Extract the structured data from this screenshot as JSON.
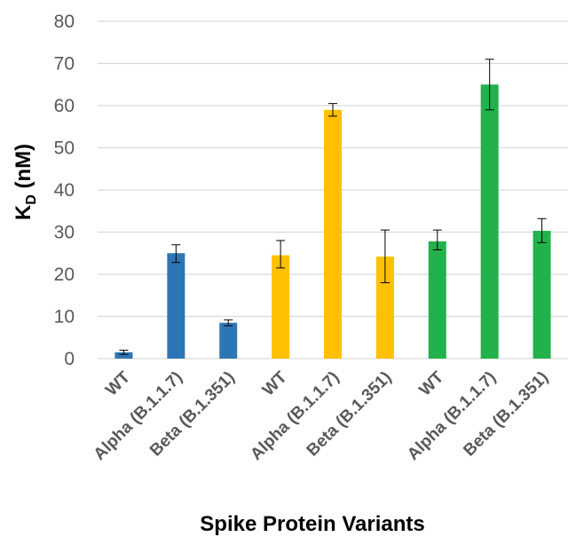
{
  "chart_data": {
    "type": "bar",
    "title": "",
    "xlabel": "Spike Protein Variants",
    "ylabel": {
      "main": "K",
      "subscript": "D",
      "unit": " (nM)"
    },
    "ylim": [
      0,
      80
    ],
    "yticks": [
      0,
      10,
      20,
      30,
      40,
      50,
      60,
      70,
      80
    ],
    "grid": true,
    "legend": "none",
    "categories": [
      "WT",
      "Alpha (B.1.1.7)",
      "Beta (B.1.351)",
      "WT",
      "Alpha (B.1.1.7)",
      "Beta (B.1.351)",
      "WT",
      "Alpha (B.1.1.7)",
      "Beta (B.1.351)"
    ],
    "values": [
      1.5,
      25,
      8.5,
      24.5,
      59,
      24.2,
      27.8,
      65,
      30.3
    ],
    "error_low": [
      1.0,
      22.8,
      7.8,
      21.5,
      57.5,
      18.0,
      25.8,
      59.0,
      27.5
    ],
    "error_high": [
      2.0,
      27.0,
      9.2,
      28.0,
      60.5,
      30.5,
      30.5,
      71.0,
      33.2
    ],
    "bar_colors": [
      "#2E75B6",
      "#2E75B6",
      "#2E75B6",
      "#FFC000",
      "#FFC000",
      "#FFC000",
      "#22B14C",
      "#22B14C",
      "#22B14C"
    ],
    "gridline_color": "#D9D9D9",
    "axis_color": "#D9D9D9"
  }
}
